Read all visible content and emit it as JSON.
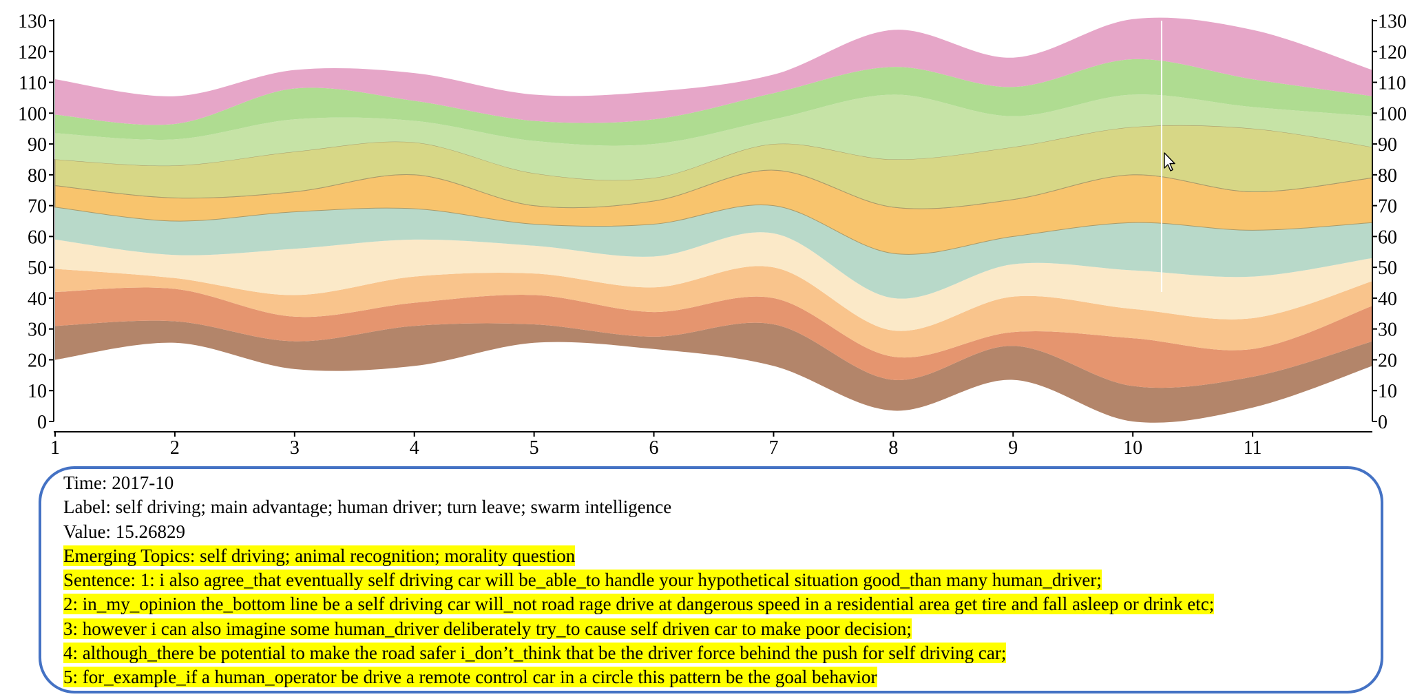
{
  "chart_data": {
    "type": "area",
    "subtype": "streamgraph",
    "x": [
      1,
      2,
      3,
      4,
      5,
      6,
      7,
      8,
      9,
      10,
      11,
      12
    ],
    "xticks": [
      "1",
      "2",
      "3",
      "4",
      "5",
      "6",
      "7",
      "8",
      "9",
      "10",
      "11"
    ],
    "ylim": [
      0,
      130
    ],
    "yticks": [
      "0",
      "10",
      "20",
      "30",
      "40",
      "50",
      "60",
      "70",
      "80",
      "90",
      "100",
      "110",
      "120",
      "130"
    ],
    "hover_x": 10.24,
    "series_colors": [
      "#b3856a",
      "#e5956f",
      "#f9c48c",
      "#fbe9c8",
      "#b8d9c9",
      "#f8c46d",
      "#d7d786",
      "#c6e3a6",
      "#afdc91",
      "#e6a6c8"
    ],
    "boundaries": [
      [
        20,
        25.5,
        17,
        18,
        25.5,
        23.5,
        18,
        3.5,
        13.5,
        0,
        4.5,
        18
      ],
      [
        31,
        32.5,
        26,
        31,
        31.5,
        27.5,
        31.5,
        13.5,
        24.5,
        11.5,
        14.5,
        26
      ],
      [
        42,
        43,
        34,
        38.5,
        41,
        35.5,
        40,
        21,
        29,
        27,
        23.5,
        37.5
      ],
      [
        49.5,
        46.5,
        41,
        47,
        48,
        43.5,
        50,
        29.5,
        40.5,
        36.5,
        33.5,
        45.5
      ],
      [
        59,
        54,
        56,
        59,
        57,
        53.5,
        61,
        40,
        51,
        49,
        47,
        53
      ],
      [
        69.5,
        65,
        68,
        69,
        64,
        64,
        70,
        54.5,
        60,
        64.5,
        62,
        64.5
      ],
      [
        76.5,
        72.5,
        74.5,
        80,
        70,
        71.5,
        81.5,
        69.5,
        72,
        80,
        74.5,
        79
      ],
      [
        85,
        83,
        87.5,
        90.5,
        80.5,
        79,
        90,
        85,
        89,
        95.5,
        95,
        89
      ],
      [
        93.5,
        91.5,
        98,
        97.5,
        91,
        90,
        98,
        106,
        99,
        106,
        102,
        99
      ],
      [
        99.5,
        96.5,
        108,
        104,
        97.5,
        98,
        106.5,
        115,
        108.5,
        117.5,
        111,
        105.5
      ],
      [
        111,
        105.5,
        114,
        113,
        106,
        107,
        112.5,
        127,
        118,
        130.5,
        127,
        114
      ]
    ]
  },
  "info": {
    "time": "Time: 2017-10",
    "label": "Label: self driving; main advantage; human driver; turn leave; swarm intelligence",
    "value": "Value: 15.26829",
    "emerging": "Emerging Topics: self driving; animal recognition; morality question",
    "sentence1": "Sentence: 1: i also agree_that eventually self driving car will be_able_to handle your hypothetical situation good_than many human_driver;",
    "sentence2": "2: in_my_opinion the_bottom line be a self driving car will_not road rage drive at dangerous speed in a residential area get tire and fall asleep or drink etc;",
    "sentence3": "3: however i can also imagine some human_driver deliberately try_to cause self driven car to make poor decision;",
    "sentence4": "4: although_there be potential to make the road safer i_don’t_think that be the driver force behind the push for self driving car;",
    "sentence5": "5: for_example_if a human_operator be drive a remote control car in a circle this pattern be the goal behavior"
  }
}
